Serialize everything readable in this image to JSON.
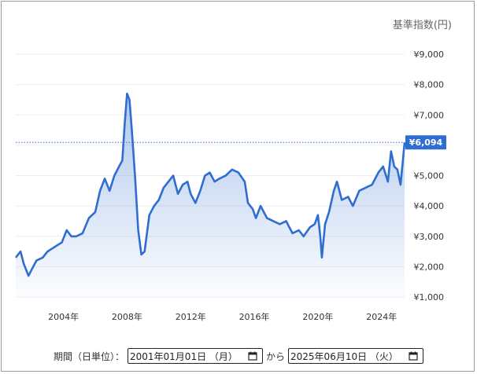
{
  "unit_label": "基準指数(円)",
  "current": {
    "label": "¥6,094",
    "value": 6094,
    "color": "#2f6dd0"
  },
  "period": {
    "label": "期間（日単位）：",
    "start": "2001年01月01日 （月）",
    "separator": "から",
    "end": "2025年06月10日 （火）"
  },
  "chart_data": {
    "type": "area",
    "color": "#2f6dd0",
    "fill_color": "#dbe6f6",
    "ylim": [
      1000,
      9000
    ],
    "xlim": [
      2001.0,
      2025.45
    ],
    "y_ticks": [
      {
        "value": 9000,
        "label": "¥9,000"
      },
      {
        "value": 8000,
        "label": "¥8,000"
      },
      {
        "value": 7000,
        "label": "¥7,000"
      },
      {
        "value": 6000,
        "label": "¥6,000"
      },
      {
        "value": 5000,
        "label": "¥5,000"
      },
      {
        "value": 4000,
        "label": "¥4,000"
      },
      {
        "value": 3000,
        "label": "¥3,000"
      },
      {
        "value": 2000,
        "label": "¥2,000"
      },
      {
        "value": 1000,
        "label": "¥1,000"
      }
    ],
    "x_ticks": [
      {
        "value": 2004,
        "label": "2004年"
      },
      {
        "value": 2008,
        "label": "2008年"
      },
      {
        "value": 2012,
        "label": "2012年"
      },
      {
        "value": 2016,
        "label": "2016年"
      },
      {
        "value": 2020,
        "label": "2020年"
      },
      {
        "value": 2024,
        "label": "2024年"
      }
    ],
    "grid": true,
    "series": [
      {
        "x": [
          2001.0,
          2001.3,
          2001.5,
          2001.8,
          2002.0,
          2002.3,
          2002.7,
          2003.0,
          2003.3,
          2003.6,
          2003.9,
          2004.2,
          2004.5,
          2004.8,
          2005.2,
          2005.6,
          2006.0,
          2006.3,
          2006.6,
          2006.9,
          2007.2,
          2007.5,
          2007.7,
          2007.85,
          2008.0,
          2008.15,
          2008.3,
          2008.5,
          2008.7,
          2008.9,
          2009.1,
          2009.4,
          2009.7,
          2010.0,
          2010.3,
          2010.6,
          2010.9,
          2011.2,
          2011.5,
          2011.8,
          2012.0,
          2012.3,
          2012.6,
          2012.9,
          2013.2,
          2013.5,
          2013.8,
          2014.2,
          2014.6,
          2015.0,
          2015.4,
          2015.6,
          2015.9,
          2016.1,
          2016.4,
          2016.8,
          2017.2,
          2017.6,
          2018.0,
          2018.4,
          2018.8,
          2019.1,
          2019.5,
          2019.8,
          2020.0,
          2020.15,
          2020.25,
          2020.45,
          2020.7,
          2021.0,
          2021.2,
          2021.5,
          2021.9,
          2022.2,
          2022.6,
          2023.0,
          2023.4,
          2023.8,
          2024.1,
          2024.4,
          2024.6,
          2024.8,
          2025.0,
          2025.2,
          2025.45
        ],
        "values": [
          2300,
          2500,
          2100,
          1700,
          1900,
          2200,
          2300,
          2500,
          2600,
          2700,
          2800,
          3200,
          3000,
          3000,
          3100,
          3600,
          3800,
          4500,
          4900,
          4500,
          5000,
          5300,
          5500,
          6700,
          7700,
          7500,
          6500,
          5000,
          3200,
          2400,
          2500,
          3700,
          4000,
          4200,
          4600,
          4800,
          5000,
          4400,
          4700,
          4800,
          4400,
          4100,
          4500,
          5000,
          5100,
          4800,
          4900,
          5000,
          5200,
          5100,
          4800,
          4100,
          3900,
          3600,
          4000,
          3600,
          3500,
          3400,
          3500,
          3100,
          3200,
          3000,
          3300,
          3400,
          3700,
          3000,
          2300,
          3400,
          3800,
          4500,
          4800,
          4200,
          4300,
          4000,
          4500,
          4600,
          4700,
          5100,
          5300,
          4800,
          5800,
          5300,
          5200,
          4700,
          6094
        ]
      }
    ]
  }
}
